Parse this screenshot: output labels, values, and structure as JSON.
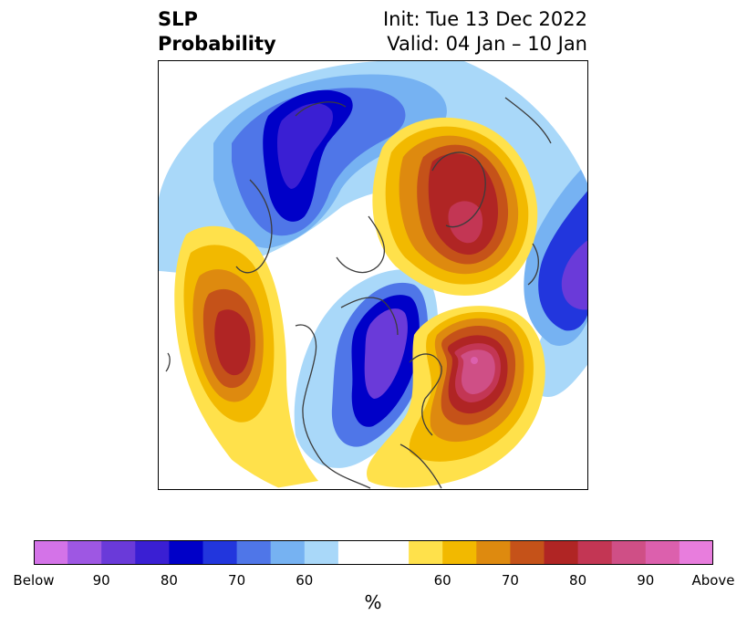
{
  "title": {
    "left_line1": "SLP",
    "left_line2": "Probability",
    "right_line1": "Init: Tue 13 Dec 2022",
    "right_line2": "Valid: 04 Jan – 10 Jan"
  },
  "colorbar": {
    "colors": [
      "#d473e8",
      "#9e57e3",
      "#6a3ad9",
      "#3a1fd3",
      "#0000c8",
      "#2236dd",
      "#4f76e8",
      "#76b2f2",
      "#a9d8f9",
      "#ffffff",
      "#ffe14b",
      "#f2b900",
      "#de8a0f",
      "#c55219",
      "#b02524",
      "#c33654",
      "#cf4f86",
      "#dc60ad",
      "#e87ddd"
    ],
    "tick_labels": [
      "Below",
      "90",
      "80",
      "70",
      "60",
      "60",
      "70",
      "80",
      "90",
      "Above"
    ],
    "unit": "%"
  },
  "map": {
    "colors": {
      "below_60": "#a9d8f9",
      "below_65": "#76b2f2",
      "below_70": "#4f76e8",
      "below_75": "#2236dd",
      "below_80": "#0000c8",
      "below_85": "#3a1fd3",
      "below_90": "#6a3ad9",
      "above_60": "#ffe14b",
      "above_65": "#f2b900",
      "above_70": "#de8a0f",
      "above_75": "#c55219",
      "above_80": "#b02524",
      "above_85": "#c33654",
      "above_90": "#cf4f86",
      "above_95": "#dc60ad",
      "coast": "#3c3c3c"
    }
  }
}
